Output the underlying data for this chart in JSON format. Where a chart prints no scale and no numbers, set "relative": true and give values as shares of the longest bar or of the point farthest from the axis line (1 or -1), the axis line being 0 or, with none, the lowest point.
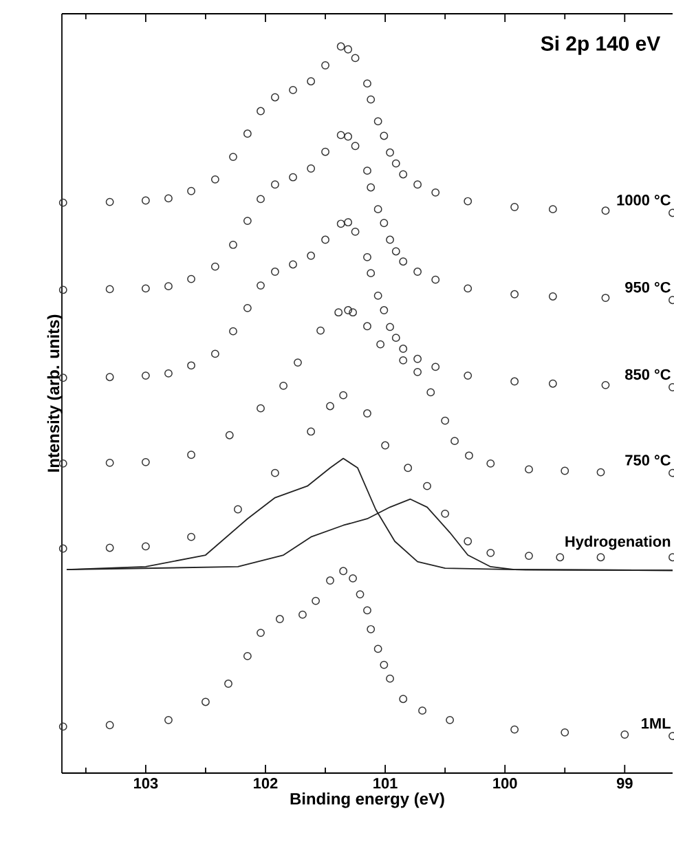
{
  "chart_data": {
    "type": "scatter",
    "title": "Si 2p 140 eV",
    "xlabel": "Binding energy (eV)",
    "ylabel": "Intensity (arb. units)",
    "relative": true,
    "marker": "circle",
    "xlim": [
      103.7,
      98.6
    ],
    "xticks": [
      103,
      {
        "value": 102.5,
        "label": null
      },
      102,
      {
        "value": 101.5,
        "label": null
      },
      101,
      {
        "value": 100.5,
        "label": null
      },
      100,
      {
        "value": 99.5,
        "label": null
      },
      99,
      {
        "value": 103.5,
        "label": null
      }
    ],
    "series": [
      {
        "name": "1000 °C",
        "color": "#333333",
        "x": [
          103.69,
          103.3,
          103.0,
          102.81,
          102.62,
          102.42,
          102.27,
          102.15,
          102.04,
          101.92,
          101.77,
          101.62,
          101.5,
          101.37,
          101.31,
          101.25,
          101.15,
          101.12,
          101.06,
          101.01,
          100.96,
          100.91,
          100.85,
          100.73,
          100.58,
          100.31,
          99.92,
          99.6,
          99.16,
          98.6
        ],
        "values": [
          0.785,
          0.786,
          0.788,
          0.791,
          0.801,
          0.817,
          0.848,
          0.88,
          0.911,
          0.93,
          0.94,
          0.952,
          0.974,
          1.0,
          0.996,
          0.984,
          0.949,
          0.927,
          0.897,
          0.877,
          0.854,
          0.839,
          0.824,
          0.81,
          0.799,
          0.787,
          0.779,
          0.776,
          0.774,
          0.771
        ]
      },
      {
        "name": "950 °C",
        "color": "#333333",
        "x": [
          103.69,
          103.3,
          103.0,
          102.81,
          102.62,
          102.42,
          102.27,
          102.15,
          102.04,
          101.92,
          101.77,
          101.62,
          101.5,
          101.37,
          101.31,
          101.25,
          101.15,
          101.12,
          101.06,
          101.01,
          100.96,
          100.91,
          100.85,
          100.73,
          100.58,
          100.31,
          99.92,
          99.6,
          99.16,
          98.6
        ],
        "values": [
          0.665,
          0.666,
          0.667,
          0.67,
          0.68,
          0.697,
          0.727,
          0.76,
          0.79,
          0.81,
          0.82,
          0.832,
          0.855,
          0.878,
          0.876,
          0.863,
          0.829,
          0.806,
          0.776,
          0.757,
          0.734,
          0.718,
          0.704,
          0.69,
          0.679,
          0.667,
          0.659,
          0.656,
          0.654,
          0.651
        ]
      },
      {
        "name": "850 °C",
        "color": "#333333",
        "x": [
          103.69,
          103.3,
          103.0,
          102.81,
          102.62,
          102.42,
          102.27,
          102.15,
          102.04,
          101.92,
          101.77,
          101.62,
          101.5,
          101.37,
          101.31,
          101.25,
          101.15,
          101.12,
          101.06,
          101.01,
          100.96,
          100.91,
          100.85,
          100.73,
          100.58,
          100.31,
          99.92,
          99.6,
          99.16,
          98.6
        ],
        "values": [
          0.544,
          0.545,
          0.547,
          0.55,
          0.561,
          0.577,
          0.608,
          0.64,
          0.671,
          0.69,
          0.7,
          0.712,
          0.734,
          0.756,
          0.758,
          0.745,
          0.71,
          0.688,
          0.657,
          0.637,
          0.614,
          0.599,
          0.584,
          0.57,
          0.559,
          0.547,
          0.539,
          0.536,
          0.534,
          0.531
        ]
      },
      {
        "name": "750 °C",
        "color": "#333333",
        "x": [
          103.69,
          103.3,
          103.0,
          102.62,
          102.3,
          102.04,
          101.85,
          101.73,
          101.54,
          101.39,
          101.31,
          101.27,
          101.15,
          101.04,
          100.85,
          100.73,
          100.62,
          100.5,
          100.42,
          100.3,
          100.12,
          99.8,
          99.5,
          99.2,
          98.6
        ],
        "values": [
          0.426,
          0.427,
          0.428,
          0.438,
          0.465,
          0.502,
          0.533,
          0.565,
          0.609,
          0.634,
          0.637,
          0.634,
          0.615,
          0.59,
          0.568,
          0.552,
          0.524,
          0.485,
          0.457,
          0.437,
          0.426,
          0.418,
          0.416,
          0.414,
          0.413
        ]
      },
      {
        "name": "Hydrogenation",
        "color": "#333333",
        "x": [
          103.69,
          103.3,
          103.0,
          102.62,
          102.23,
          101.92,
          101.62,
          101.46,
          101.35,
          101.15,
          101.0,
          100.81,
          100.65,
          100.5,
          100.31,
          100.12,
          99.8,
          99.54,
          99.2,
          98.6
        ],
        "values": [
          0.309,
          0.31,
          0.312,
          0.325,
          0.363,
          0.413,
          0.47,
          0.505,
          0.52,
          0.495,
          0.451,
          0.42,
          0.395,
          0.357,
          0.319,
          0.303,
          0.299,
          0.297,
          0.297,
          0.297
        ]
      },
      {
        "type": "line",
        "marker": "none",
        "color": "#222222",
        "x": [
          103.66,
          103.0,
          102.5,
          102.15,
          101.92,
          101.65,
          101.46,
          101.35,
          101.23,
          101.08,
          100.92,
          100.73,
          100.5,
          99.92,
          98.6
        ],
        "values": [
          0.28,
          0.284,
          0.3,
          0.35,
          0.379,
          0.395,
          0.42,
          0.433,
          0.42,
          0.363,
          0.319,
          0.291,
          0.282,
          0.28,
          0.279
        ]
      },
      {
        "type": "line",
        "marker": "none",
        "color": "#222222",
        "x": [
          103.66,
          102.23,
          101.85,
          101.62,
          101.35,
          101.15,
          100.96,
          100.79,
          100.65,
          100.46,
          100.31,
          100.12,
          99.92,
          98.6
        ],
        "values": [
          0.28,
          0.284,
          0.3,
          0.325,
          0.341,
          0.35,
          0.366,
          0.377,
          0.366,
          0.331,
          0.3,
          0.284,
          0.28,
          0.279
        ]
      },
      {
        "name": "1ML",
        "color": "#333333",
        "x": [
          103.69,
          103.3,
          102.81,
          102.5,
          102.31,
          102.15,
          102.04,
          101.88,
          101.69,
          101.58,
          101.46,
          101.35,
          101.27,
          101.21,
          101.15,
          101.12,
          101.06,
          101.01,
          100.96,
          100.85,
          100.69,
          100.46,
          99.92,
          99.5,
          99.0,
          98.6
        ],
        "values": [
          0.064,
          0.066,
          0.073,
          0.098,
          0.123,
          0.161,
          0.193,
          0.212,
          0.218,
          0.237,
          0.265,
          0.278,
          0.268,
          0.246,
          0.224,
          0.198,
          0.171,
          0.149,
          0.13,
          0.102,
          0.086,
          0.073,
          0.06,
          0.056,
          0.053,
          0.051
        ]
      }
    ]
  }
}
